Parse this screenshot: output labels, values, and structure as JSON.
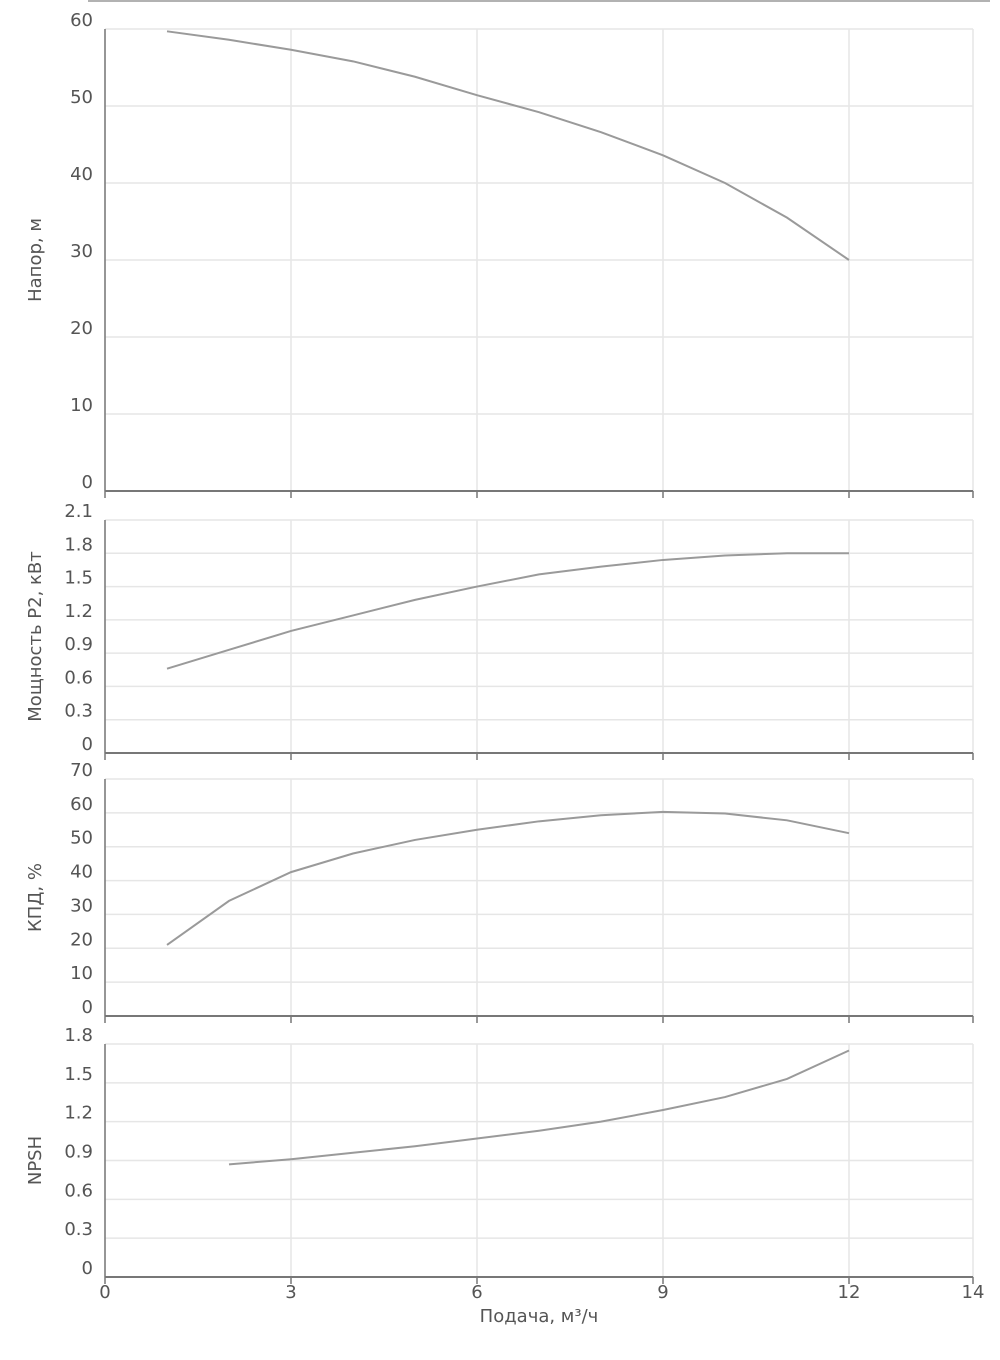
{
  "chart_data": [
    {
      "type": "line",
      "ylabel": "Напор, м",
      "color": "#9a9a9a",
      "x": [
        1,
        2,
        3,
        4,
        5,
        6,
        7,
        8,
        9,
        10,
        11,
        12
      ],
      "values": [
        59.7,
        58.6,
        57.3,
        55.8,
        53.8,
        51.4,
        49.2,
        46.6,
        43.6,
        40.0,
        35.5,
        30
      ],
      "xlim": [
        0,
        14
      ],
      "xticks": [
        0,
        3,
        6,
        9,
        12,
        14
      ],
      "ylim": [
        0,
        60
      ],
      "yticks": [
        0,
        10,
        20,
        30,
        40,
        50,
        60
      ],
      "grid": true
    },
    {
      "type": "line",
      "ylabel": "Мощность P2, кВт",
      "color": "#9a9a9a",
      "x": [
        1,
        2,
        3,
        4,
        5,
        6,
        7,
        8,
        9,
        10,
        11,
        12
      ],
      "values": [
        0.76,
        0.93,
        1.1,
        1.24,
        1.38,
        1.5,
        1.61,
        1.68,
        1.74,
        1.78,
        1.8,
        1.8
      ],
      "xlim": [
        0,
        14
      ],
      "xticks": [
        0,
        3,
        6,
        9,
        12,
        14
      ],
      "ylim": [
        0,
        2.1
      ],
      "yticks": [
        0,
        0.3,
        0.6,
        0.9,
        1.2,
        1.5,
        1.8,
        2.1
      ],
      "grid": true
    },
    {
      "type": "line",
      "ylabel": "КПД, %",
      "color": "#9a9a9a",
      "x": [
        1,
        2,
        3,
        4,
        5,
        6,
        7,
        8,
        9,
        10,
        11,
        12
      ],
      "values": [
        21,
        34,
        42.5,
        48,
        52,
        55,
        57.5,
        59.3,
        60.3,
        59.8,
        57.8,
        54
      ],
      "xlim": [
        0,
        14
      ],
      "xticks": [
        0,
        3,
        6,
        9,
        12,
        14
      ],
      "ylim": [
        0,
        70
      ],
      "yticks": [
        0,
        10,
        20,
        30,
        40,
        50,
        60,
        70
      ],
      "grid": true
    },
    {
      "type": "line",
      "ylabel": "NPSH",
      "xlabel": "Подача, м³/ч",
      "color": "#9a9a9a",
      "x": [
        2,
        3,
        4,
        5,
        6,
        7,
        8,
        9,
        10,
        11,
        12
      ],
      "values": [
        0.87,
        0.91,
        0.96,
        1.01,
        1.07,
        1.13,
        1.2,
        1.29,
        1.39,
        1.53,
        1.75
      ],
      "xlim": [
        0,
        14
      ],
      "xticks": [
        0,
        3,
        6,
        9,
        12,
        14
      ],
      "ylim": [
        0,
        1.8
      ],
      "yticks": [
        0,
        0.3,
        0.6,
        0.9,
        1.2,
        1.5,
        1.8
      ],
      "grid": true
    }
  ]
}
